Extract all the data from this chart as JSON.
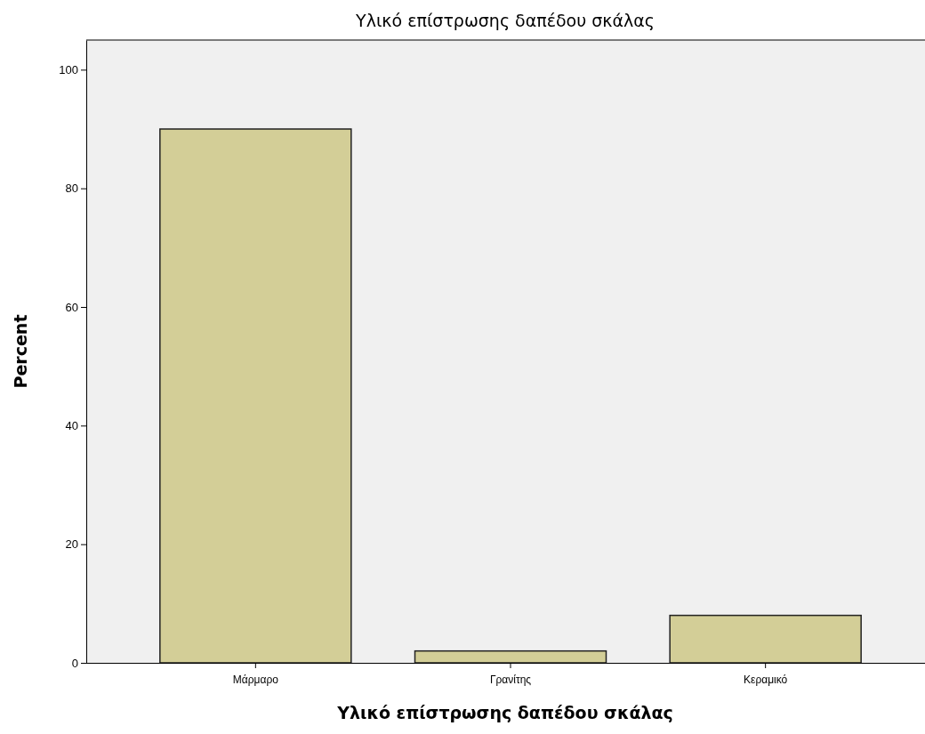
{
  "chart_data": {
    "type": "bar",
    "title": "Υλικό επίστρωσης δαπέδου σκάλας",
    "xlabel": "Υλικό επίστρωσης δαπέδου σκάλας",
    "ylabel": "Percent",
    "categories": [
      "Μάρμαρο",
      "Γρανίτης",
      "Κεραμικό"
    ],
    "values": [
      90,
      2,
      8
    ],
    "color": "#d3ce97",
    "ylim": [
      0,
      105
    ],
    "yticks": [
      0,
      20,
      40,
      60,
      80,
      100
    ],
    "grid": false
  }
}
